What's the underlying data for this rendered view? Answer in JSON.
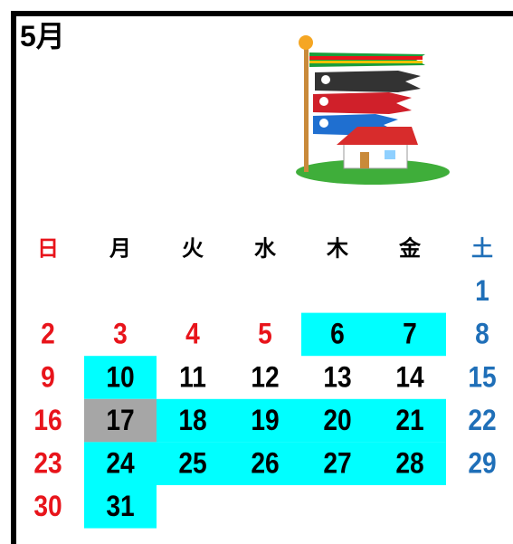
{
  "calendar": {
    "title": "5月",
    "weekdays": [
      {
        "text": "日",
        "color": "#e8141b"
      },
      {
        "text": "月",
        "color": "#000000"
      },
      {
        "text": "火",
        "color": "#000000"
      },
      {
        "text": "水",
        "color": "#000000"
      },
      {
        "text": "木",
        "color": "#000000"
      },
      {
        "text": "金",
        "color": "#000000"
      },
      {
        "text": "土",
        "color": "#1f6fb8"
      }
    ],
    "weeks": [
      [
        null,
        null,
        null,
        null,
        null,
        null,
        {
          "day": 1,
          "color": "#1f6fb8"
        }
      ],
      [
        {
          "day": 2,
          "color": "#e8141b"
        },
        {
          "day": 3,
          "color": "#e8141b"
        },
        {
          "day": 4,
          "color": "#e8141b"
        },
        {
          "day": 5,
          "color": "#e8141b"
        },
        {
          "day": 6,
          "color": "#000000",
          "bg": "#00ffff"
        },
        {
          "day": 7,
          "color": "#000000",
          "bg": "#00ffff"
        },
        {
          "day": 8,
          "color": "#1f6fb8"
        }
      ],
      [
        {
          "day": 9,
          "color": "#e8141b"
        },
        {
          "day": 10,
          "color": "#000000",
          "bg": "#00ffff"
        },
        {
          "day": 11,
          "color": "#000000"
        },
        {
          "day": 12,
          "color": "#000000"
        },
        {
          "day": 13,
          "color": "#000000"
        },
        {
          "day": 14,
          "color": "#000000"
        },
        {
          "day": 15,
          "color": "#1f6fb8"
        }
      ],
      [
        {
          "day": 16,
          "color": "#e8141b"
        },
        {
          "day": 17,
          "color": "#000000",
          "bg": "#a6a6a6"
        },
        {
          "day": 18,
          "color": "#000000",
          "bg": "#00ffff"
        },
        {
          "day": 19,
          "color": "#000000",
          "bg": "#00ffff"
        },
        {
          "day": 20,
          "color": "#000000",
          "bg": "#00ffff"
        },
        {
          "day": 21,
          "color": "#000000",
          "bg": "#00ffff"
        },
        {
          "day": 22,
          "color": "#1f6fb8"
        }
      ],
      [
        {
          "day": 23,
          "color": "#e8141b"
        },
        {
          "day": 24,
          "color": "#000000",
          "bg": "#00ffff"
        },
        {
          "day": 25,
          "color": "#000000",
          "bg": "#00ffff"
        },
        {
          "day": 26,
          "color": "#000000",
          "bg": "#00ffff"
        },
        {
          "day": 27,
          "color": "#000000",
          "bg": "#00ffff"
        },
        {
          "day": 28,
          "color": "#000000",
          "bg": "#00ffff"
        },
        {
          "day": 29,
          "color": "#1f6fb8"
        }
      ],
      [
        {
          "day": 30,
          "color": "#e8141b"
        },
        {
          "day": 31,
          "color": "#000000",
          "bg": "#00ffff"
        },
        null,
        null,
        null,
        null,
        null
      ]
    ]
  }
}
